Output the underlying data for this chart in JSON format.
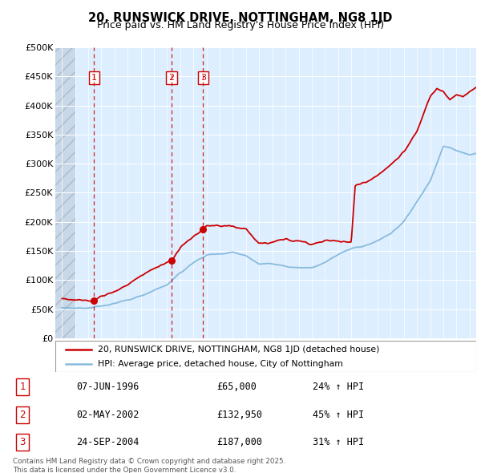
{
  "title": "20, RUNSWICK DRIVE, NOTTINGHAM, NG8 1JD",
  "subtitle": "Price paid vs. HM Land Registry's House Price Index (HPI)",
  "ylabel_ticks": [
    "£0",
    "£50K",
    "£100K",
    "£150K",
    "£200K",
    "£250K",
    "£300K",
    "£350K",
    "£400K",
    "£450K",
    "£500K"
  ],
  "ytick_vals": [
    0,
    50000,
    100000,
    150000,
    200000,
    250000,
    300000,
    350000,
    400000,
    450000,
    500000
  ],
  "xmin": 1993.5,
  "xmax": 2025.5,
  "ymin": 0,
  "ymax": 500000,
  "sale_color": "#cc0000",
  "hpi_color": "#88bbdd",
  "bg_color": "#ddeeff",
  "transactions": [
    {
      "num": 1,
      "date": "07-JUN-1996",
      "price": 65000,
      "pct": "24%",
      "x": 1996.44
    },
    {
      "num": 2,
      "date": "02-MAY-2002",
      "price": 132950,
      "pct": "45%",
      "x": 2002.34
    },
    {
      "num": 3,
      "date": "24-SEP-2004",
      "price": 187000,
      "pct": "31%",
      "x": 2004.73
    }
  ],
  "legend_sale_label": "20, RUNSWICK DRIVE, NOTTINGHAM, NG8 1JD (detached house)",
  "legend_hpi_label": "HPI: Average price, detached house, City of Nottingham",
  "footer": "Contains HM Land Registry data © Crown copyright and database right 2025.\nThis data is licensed under the Open Government Licence v3.0."
}
